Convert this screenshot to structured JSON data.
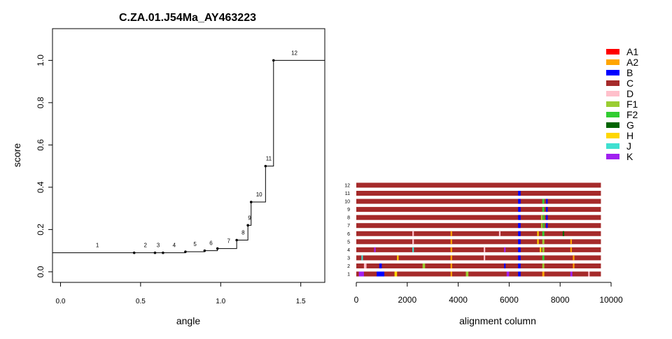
{
  "chart_data": [
    {
      "type": "line",
      "title": "C.ZA.01.J54Ma_AY463223",
      "xlabel": "angle",
      "ylabel": "score",
      "xlim": [
        -0.05,
        1.65
      ],
      "ylim": [
        -0.05,
        1.15
      ],
      "xticks": [
        0.0,
        0.5,
        1.0,
        1.5
      ],
      "xtick_labels": [
        "0.0",
        "0.5",
        "1.0",
        "1.5"
      ],
      "yticks": [
        0.0,
        0.2,
        0.4,
        0.6,
        0.8,
        1.0
      ],
      "ytick_labels": [
        "0.0",
        "0.2",
        "0.4",
        "0.6",
        "0.8",
        "1.0"
      ],
      "grid": false,
      "line_start_x": -0.05,
      "line_end_x": 1.65,
      "points": [
        {
          "x": 0.46,
          "y": 0.09
        },
        {
          "x": 0.59,
          "y": 0.09
        },
        {
          "x": 0.64,
          "y": 0.09
        },
        {
          "x": 0.78,
          "y": 0.095
        },
        {
          "x": 0.9,
          "y": 0.1
        },
        {
          "x": 0.98,
          "y": 0.11
        },
        {
          "x": 1.1,
          "y": 0.15
        },
        {
          "x": 1.17,
          "y": 0.22
        },
        {
          "x": 1.19,
          "y": 0.33
        },
        {
          "x": 1.28,
          "y": 0.5
        },
        {
          "x": 1.33,
          "y": 1.0
        }
      ],
      "step_labels": [
        {
          "label": "1",
          "x": 0.23,
          "y": 0.09
        },
        {
          "label": "2",
          "x": 0.53,
          "y": 0.09
        },
        {
          "label": "3",
          "x": 0.61,
          "y": 0.09
        },
        {
          "label": "4",
          "x": 0.71,
          "y": 0.09
        },
        {
          "label": "5",
          "x": 0.84,
          "y": 0.095
        },
        {
          "label": "6",
          "x": 0.94,
          "y": 0.1
        },
        {
          "label": "7",
          "x": 1.05,
          "y": 0.11
        },
        {
          "label": "8",
          "x": 1.14,
          "y": 0.15
        },
        {
          "label": "9",
          "x": 1.18,
          "y": 0.22
        },
        {
          "label": "10",
          "x": 1.24,
          "y": 0.33
        },
        {
          "label": "11",
          "x": 1.3,
          "y": 0.5
        },
        {
          "label": "12",
          "x": 1.46,
          "y": 1.0
        }
      ]
    },
    {
      "type": "heatmap",
      "title": "",
      "xlabel": "alignment column",
      "ylabel": "",
      "xlim": [
        0,
        10000
      ],
      "xticks": [
        0,
        2000,
        4000,
        6000,
        8000,
        10000
      ],
      "xtick_labels": [
        "0",
        "2000",
        "4000",
        "6000",
        "8000",
        "10000"
      ],
      "alignment_length": 9600,
      "base_subtype": "C",
      "track_labels": [
        "1",
        "2",
        "3",
        "4",
        "5",
        "6",
        "7",
        "8",
        "9",
        "10",
        "11",
        "12"
      ],
      "tracks": [
        {
          "label": "1",
          "segments": [
            {
              "subtype": "K",
              "start": 100,
              "end": 300
            },
            {
              "subtype": "B",
              "start": 800,
              "end": 1100
            },
            {
              "subtype": "H",
              "start": 1500,
              "end": 1600
            },
            {
              "subtype": "A2",
              "start": 3700,
              "end": 3760
            },
            {
              "subtype": "F1",
              "start": 4300,
              "end": 4400
            },
            {
              "subtype": "K",
              "start": 5900,
              "end": 6000
            },
            {
              "subtype": "B",
              "start": 6350,
              "end": 6450
            },
            {
              "subtype": "A2",
              "start": 7300,
              "end": 7380
            },
            {
              "subtype": "K",
              "start": 8400,
              "end": 8480
            },
            {
              "subtype": "D",
              "start": 9100,
              "end": 9160
            }
          ]
        },
        {
          "label": "2",
          "segments": [
            {
              "subtype": "D",
              "start": 300,
              "end": 400
            },
            {
              "subtype": "B",
              "start": 900,
              "end": 1000
            },
            {
              "subtype": "F1",
              "start": 2600,
              "end": 2700
            },
            {
              "subtype": "A2",
              "start": 3700,
              "end": 3760
            },
            {
              "subtype": "B",
              "start": 5800,
              "end": 5860
            },
            {
              "subtype": "B",
              "start": 6350,
              "end": 6450
            },
            {
              "subtype": "F1",
              "start": 7300,
              "end": 7380
            },
            {
              "subtype": "A2",
              "start": 8500,
              "end": 8560
            }
          ]
        },
        {
          "label": "3",
          "segments": [
            {
              "subtype": "J",
              "start": 200,
              "end": 260
            },
            {
              "subtype": "H",
              "start": 1600,
              "end": 1660
            },
            {
              "subtype": "A2",
              "start": 3700,
              "end": 3760
            },
            {
              "subtype": "D",
              "start": 5000,
              "end": 5060
            },
            {
              "subtype": "B",
              "start": 6350,
              "end": 6450
            },
            {
              "subtype": "F2",
              "start": 7300,
              "end": 7380
            },
            {
              "subtype": "A2",
              "start": 8500,
              "end": 8560
            }
          ]
        },
        {
          "label": "4",
          "segments": [
            {
              "subtype": "K",
              "start": 700,
              "end": 760
            },
            {
              "subtype": "J",
              "start": 2200,
              "end": 2260
            },
            {
              "subtype": "A2",
              "start": 3700,
              "end": 3760
            },
            {
              "subtype": "D",
              "start": 5000,
              "end": 5060
            },
            {
              "subtype": "K",
              "start": 5800,
              "end": 5860
            },
            {
              "subtype": "B",
              "start": 6350,
              "end": 6450
            },
            {
              "subtype": "H",
              "start": 7200,
              "end": 7260
            },
            {
              "subtype": "F1",
              "start": 7300,
              "end": 7380
            },
            {
              "subtype": "A2",
              "start": 8400,
              "end": 8460
            }
          ]
        },
        {
          "label": "5",
          "segments": [
            {
              "subtype": "D",
              "start": 2200,
              "end": 2260
            },
            {
              "subtype": "A2",
              "start": 3700,
              "end": 3760
            },
            {
              "subtype": "B",
              "start": 6350,
              "end": 6450
            },
            {
              "subtype": "H",
              "start": 7100,
              "end": 7160
            },
            {
              "subtype": "F1",
              "start": 7300,
              "end": 7380
            },
            {
              "subtype": "A2",
              "start": 8400,
              "end": 8460
            }
          ]
        },
        {
          "label": "6",
          "segments": [
            {
              "subtype": "D",
              "start": 2200,
              "end": 2260
            },
            {
              "subtype": "A2",
              "start": 3700,
              "end": 3760
            },
            {
              "subtype": "D",
              "start": 5600,
              "end": 5660
            },
            {
              "subtype": "B",
              "start": 6350,
              "end": 6450
            },
            {
              "subtype": "H",
              "start": 7100,
              "end": 7160
            },
            {
              "subtype": "F2",
              "start": 7300,
              "end": 7380
            },
            {
              "subtype": "G",
              "start": 8100,
              "end": 8160
            }
          ]
        },
        {
          "label": "7",
          "segments": [
            {
              "subtype": "B",
              "start": 6350,
              "end": 6450
            },
            {
              "subtype": "F1",
              "start": 7250,
              "end": 7310
            },
            {
              "subtype": "F2",
              "start": 7330,
              "end": 7390
            },
            {
              "subtype": "B",
              "start": 7450,
              "end": 7510
            }
          ]
        },
        {
          "label": "8",
          "segments": [
            {
              "subtype": "B",
              "start": 6350,
              "end": 6450
            },
            {
              "subtype": "F1",
              "start": 7250,
              "end": 7310
            },
            {
              "subtype": "F2",
              "start": 7330,
              "end": 7390
            },
            {
              "subtype": "B",
              "start": 7450,
              "end": 7510
            }
          ]
        },
        {
          "label": "9",
          "segments": [
            {
              "subtype": "B",
              "start": 6350,
              "end": 6450
            },
            {
              "subtype": "F2",
              "start": 7300,
              "end": 7380
            },
            {
              "subtype": "B",
              "start": 7450,
              "end": 7510
            }
          ]
        },
        {
          "label": "10",
          "segments": [
            {
              "subtype": "B",
              "start": 6350,
              "end": 6450
            },
            {
              "subtype": "F2",
              "start": 7300,
              "end": 7380
            },
            {
              "subtype": "B",
              "start": 7450,
              "end": 7510
            }
          ]
        },
        {
          "label": "11",
          "segments": [
            {
              "subtype": "B",
              "start": 6350,
              "end": 6450
            }
          ]
        },
        {
          "label": "12",
          "segments": []
        }
      ]
    }
  ],
  "legend": {
    "placement": "top-right",
    "items": [
      {
        "label": "A1",
        "color": "#ff0000"
      },
      {
        "label": "A2",
        "color": "#ffa500"
      },
      {
        "label": "B",
        "color": "#0000ff"
      },
      {
        "label": "C",
        "color": "#a52a2a"
      },
      {
        "label": "D",
        "color": "#ffc0cb"
      },
      {
        "label": "F1",
        "color": "#9acd32"
      },
      {
        "label": "F2",
        "color": "#32cd32"
      },
      {
        "label": "G",
        "color": "#006400"
      },
      {
        "label": "H",
        "color": "#ffd700"
      },
      {
        "label": "J",
        "color": "#40e0d0"
      },
      {
        "label": "K",
        "color": "#a020f0"
      }
    ]
  }
}
